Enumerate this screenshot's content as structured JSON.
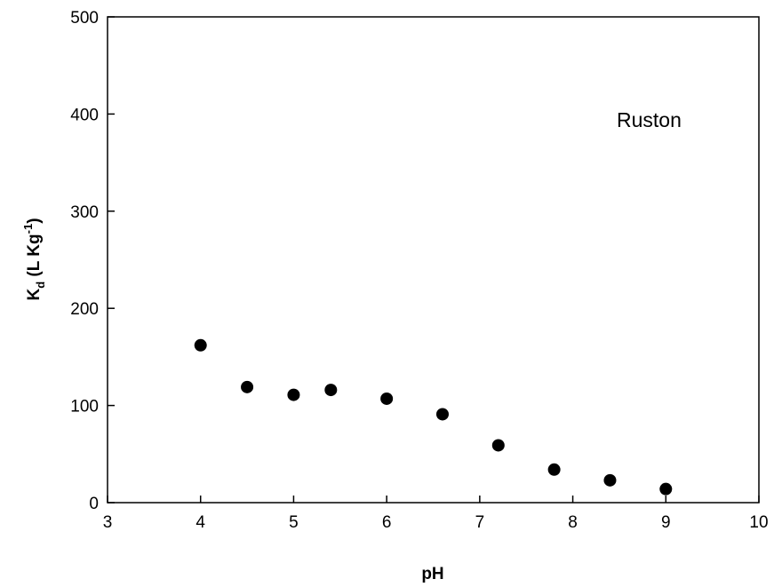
{
  "chart_data": {
    "type": "scatter",
    "annotation": "Ruston",
    "xlabel": "pH",
    "ylabel": {
      "main": "K",
      "sub": "d",
      "units_pre": " (L Kg",
      "sup": "-1",
      "units_post": ")"
    },
    "xlim": [
      3,
      10
    ],
    "ylim": [
      0,
      500
    ],
    "xticks": [
      3,
      4,
      5,
      6,
      7,
      8,
      9,
      10
    ],
    "yticks": [
      0,
      100,
      200,
      300,
      400,
      500
    ],
    "grid": false,
    "legend": "none",
    "marker_color": "#000000",
    "series": [
      {
        "points": [
          {
            "x": 4.0,
            "y": 162
          },
          {
            "x": 4.5,
            "y": 119
          },
          {
            "x": 5.0,
            "y": 111
          },
          {
            "x": 5.4,
            "y": 116
          },
          {
            "x": 6.0,
            "y": 107
          },
          {
            "x": 6.6,
            "y": 91
          },
          {
            "x": 7.2,
            "y": 59
          },
          {
            "x": 7.8,
            "y": 34
          },
          {
            "x": 8.4,
            "y": 23
          },
          {
            "x": 9.0,
            "y": 14
          }
        ]
      }
    ]
  }
}
